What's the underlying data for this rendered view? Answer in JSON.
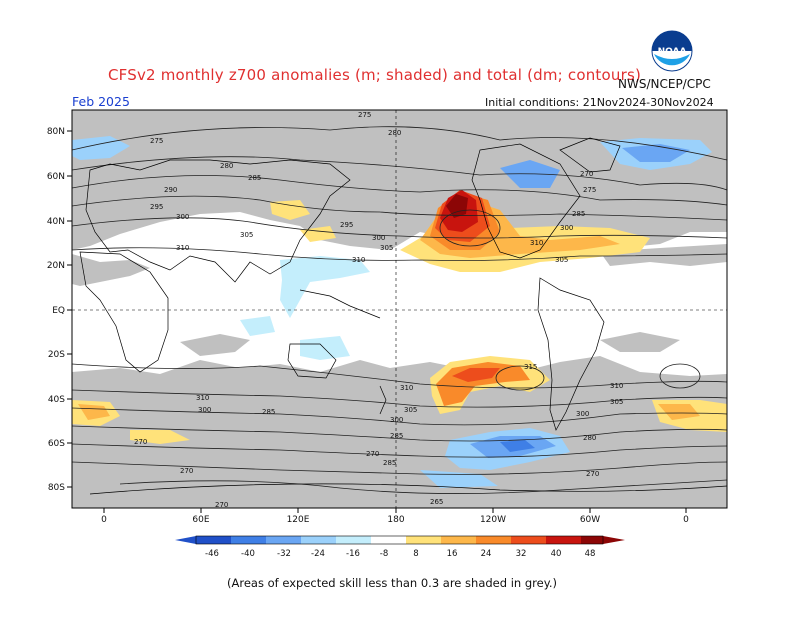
{
  "header": {
    "title": "CFSv2 monthly z700 anomalies (m; shaded) and total (dm; contours)",
    "month": "Feb 2025",
    "agency": "NWS/NCEP/CPC",
    "initial_conditions": "Initial conditions: 21Nov2024-30Nov2024"
  },
  "logo": {
    "text": "NOAA",
    "icon": "noaa-logo-icon"
  },
  "map": {
    "lat_labels": [
      "80N",
      "60N",
      "40N",
      "20N",
      "EQ",
      "20S",
      "40S",
      "60S",
      "80S"
    ],
    "lon_labels": [
      "0",
      "60E",
      "120E",
      "180",
      "120W",
      "60W",
      "0"
    ],
    "contour_labels": [
      "275",
      "280",
      "285",
      "290",
      "295",
      "300",
      "305",
      "310",
      "315",
      "270",
      "265"
    ],
    "skill_shading_color": "#c0c0c0",
    "land_outline_color": "#000000"
  },
  "colorbar": {
    "ticks": [
      "-46",
      "-40",
      "-32",
      "-24",
      "-16",
      "-8",
      "8",
      "16",
      "24",
      "32",
      "40",
      "48"
    ],
    "colors": [
      "#2050c8",
      "#3f7fe6",
      "#6aa6f3",
      "#9bd1fb",
      "#c4eefc",
      "#ffffff",
      "#ffe27a",
      "#fdb74a",
      "#f98a2a",
      "#ed4d1c",
      "#c8140e",
      "#8c0606"
    ]
  },
  "footnote": "(Areas of expected skill less than 0.3 are shaded in grey.)"
}
